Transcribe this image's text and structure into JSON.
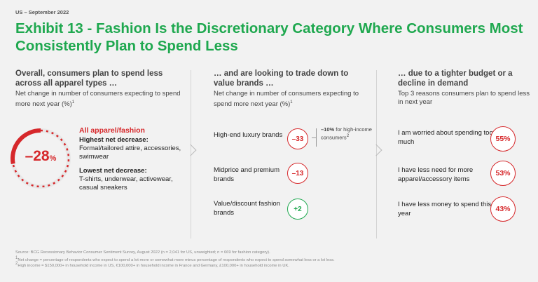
{
  "header": {
    "eyebrow": "US – September 2022",
    "title": "Exhibit 13 - Fashion Is the Discretionary Category Where Consumers Most Consistently Plan to Spend Less"
  },
  "columns": {
    "c1": {
      "heading": "Overall, consumers plan to spend less across all apparel types …",
      "sub": "Net change in number of consumers expecting to spend more next year (%)",
      "sub_sup": "1"
    },
    "c2": {
      "heading": "… and are looking to trade down to value brands …",
      "sub": "Net change in number of consumers expecting to spend more next year (%)",
      "sub_sup": "1"
    },
    "c3": {
      "heading": "… due to a tighter budget or a decline in demand",
      "sub": "Top 3 reasons consumers plan to spend less in next year"
    }
  },
  "panel1": {
    "donut_value": "–28",
    "donut_unit": "%",
    "red_head": "All apparel/fashion",
    "highest_label": "Highest net decrease:",
    "highest_text": "Formal/tailored attire, accessories, swimwear",
    "lowest_label": "Lowest net decrease:",
    "lowest_text": "T-shirts, underwear, activewear, casual sneakers"
  },
  "panel2_note": {
    "value": "–10%",
    "text": " for high-income consumers",
    "sup": "2"
  },
  "footnotes": {
    "source": "Source: BCG Recessionary Behavior Consumer Sentiment Survey, August 2022 (n = 2,041 for US, unweighted; n = 669 for fashion category).",
    "note1": "Net change = percentage of respondents who expect to spend a lot more or somewhat more minus percentage of respondents who expect to spend somewhat less or a lot less.",
    "note2": "High income = $150,000+ in household income in US, €100,000+ in household income in France and Germany, £100,000+ in household income in UK."
  },
  "colors": {
    "accent_green": "#1fa84f",
    "negative_red": "#d6282b"
  },
  "chart_data": [
    {
      "type": "pie",
      "title": "All apparel/fashion",
      "values": [
        28,
        72
      ],
      "categories": [
        "Net decrease",
        ""
      ]
    },
    {
      "type": "table",
      "categories": [
        "High-end luxury brands",
        "Midprice and premium brands",
        "Value/discount fashion brands"
      ],
      "values": [
        -33,
        -13,
        2
      ],
      "labels": [
        "–33",
        "–13",
        "+2"
      ]
    },
    {
      "type": "table",
      "categories": [
        "I am worried about spending too much",
        "I have less need for more apparel/accessory items",
        "I have less money to spend this year"
      ],
      "values": [
        55,
        53,
        43
      ],
      "labels": [
        "55%",
        "53%",
        "43%"
      ]
    }
  ]
}
